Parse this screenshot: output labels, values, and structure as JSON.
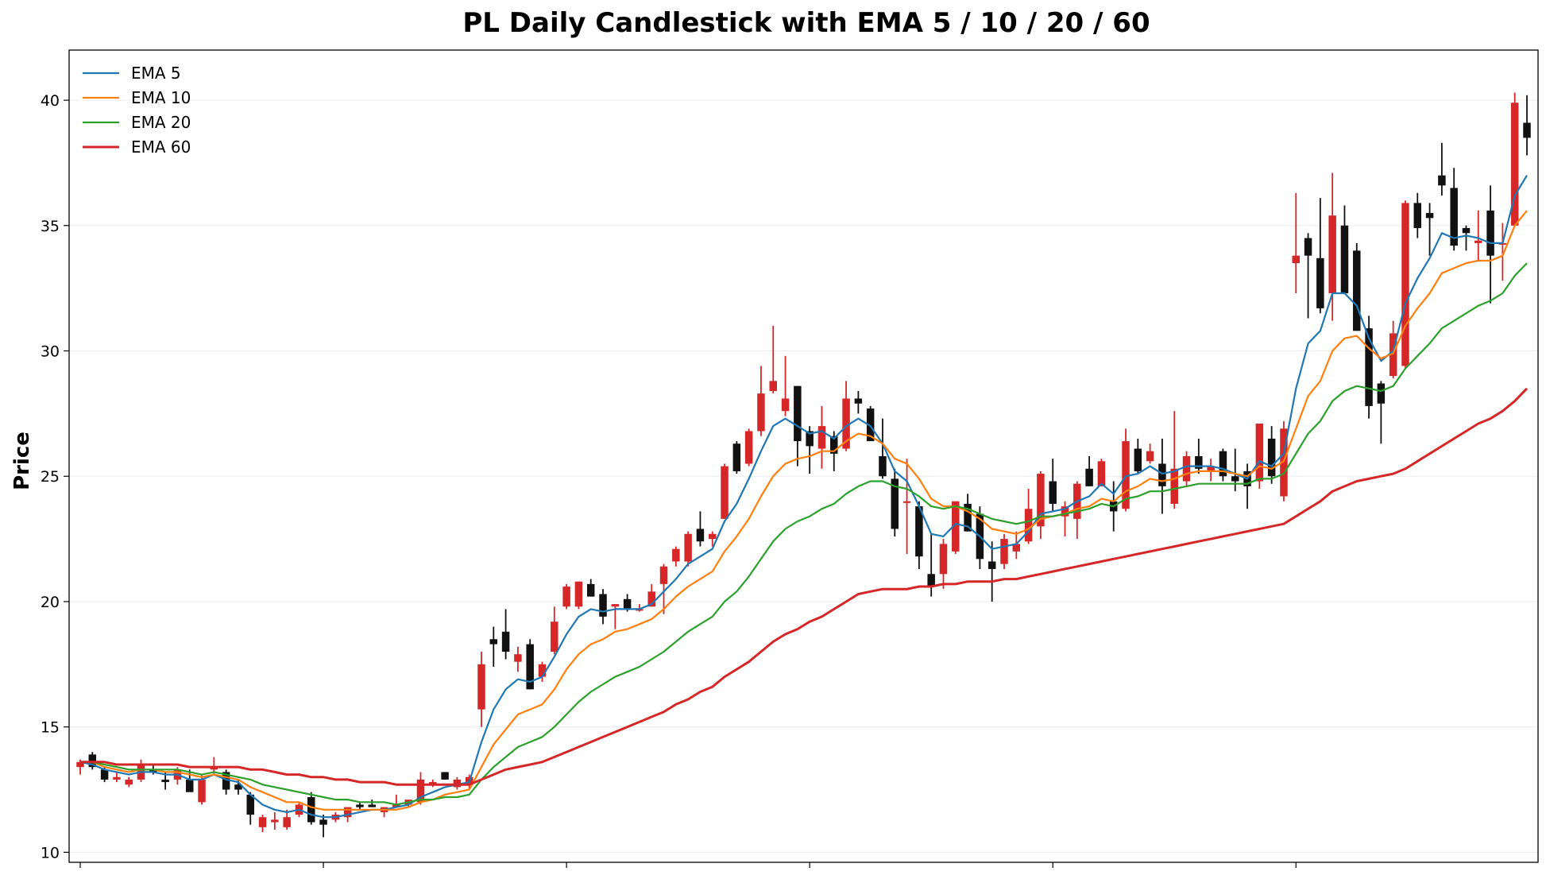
{
  "chart_data": {
    "type": "candlestick",
    "title": "PL Daily Candlestick with EMA 5 / 10 / 20 / 60",
    "ylabel": "Price",
    "ylim": [
      9.6,
      42.0
    ],
    "yticks": [
      10,
      15,
      20,
      25,
      30,
      35,
      40
    ],
    "grid": true,
    "legend_position": "top-left",
    "colors": {
      "up": "#d62728",
      "down": "#111111"
    },
    "candles": [
      [
        13.4,
        13.7,
        13.1,
        13.6
      ],
      [
        13.9,
        14.0,
        13.3,
        13.4
      ],
      [
        13.3,
        13.4,
        12.8,
        12.9
      ],
      [
        12.9,
        13.2,
        12.8,
        13.0
      ],
      [
        12.7,
        13.0,
        12.6,
        12.9
      ],
      [
        12.9,
        13.7,
        12.8,
        13.5
      ],
      [
        13.3,
        13.5,
        13.1,
        13.2
      ],
      [
        12.9,
        13.2,
        12.5,
        12.8
      ],
      [
        12.9,
        13.4,
        12.7,
        13.3
      ],
      [
        12.9,
        13.3,
        12.5,
        12.4
      ],
      [
        12.0,
        13.1,
        11.9,
        12.9
      ],
      [
        13.3,
        13.8,
        13.1,
        13.4
      ],
      [
        13.2,
        13.3,
        12.3,
        12.5
      ],
      [
        12.7,
        12.9,
        12.3,
        12.5
      ],
      [
        12.3,
        12.4,
        11.1,
        11.5
      ],
      [
        11.0,
        11.5,
        10.8,
        11.4
      ],
      [
        11.2,
        11.6,
        10.9,
        11.3
      ],
      [
        11.0,
        11.7,
        10.9,
        11.4
      ],
      [
        11.5,
        12.0,
        11.4,
        11.9
      ],
      [
        12.2,
        12.4,
        11.1,
        11.2
      ],
      [
        11.3,
        11.5,
        10.6,
        11.1
      ],
      [
        11.3,
        11.6,
        11.2,
        11.5
      ],
      [
        11.4,
        11.7,
        11.2,
        11.8
      ],
      [
        11.9,
        12.0,
        11.7,
        11.8
      ],
      [
        11.9,
        12.1,
        11.8,
        11.8
      ],
      [
        11.6,
        11.8,
        11.4,
        11.8
      ],
      [
        11.8,
        12.3,
        11.8,
        11.9
      ],
      [
        11.9,
        12.1,
        11.8,
        12.1
      ],
      [
        12.0,
        13.2,
        11.9,
        12.9
      ],
      [
        12.7,
        12.9,
        12.6,
        12.8
      ],
      [
        13.2,
        13.2,
        12.9,
        12.9
      ],
      [
        12.6,
        13.0,
        12.5,
        12.9
      ],
      [
        12.7,
        13.1,
        12.5,
        13.0
      ],
      [
        15.7,
        18.0,
        15.0,
        17.5
      ],
      [
        18.5,
        19.0,
        17.4,
        18.3
      ],
      [
        18.8,
        19.7,
        17.7,
        18.0
      ],
      [
        17.6,
        18.2,
        17.2,
        17.9
      ],
      [
        18.3,
        18.5,
        16.5,
        16.5
      ],
      [
        17.0,
        17.6,
        16.8,
        17.5
      ],
      [
        18.0,
        19.8,
        17.9,
        19.2
      ],
      [
        19.8,
        20.7,
        19.7,
        20.6
      ],
      [
        19.8,
        20.8,
        19.7,
        20.8
      ],
      [
        20.7,
        20.9,
        20.2,
        20.2
      ],
      [
        20.3,
        20.5,
        19.1,
        19.4
      ],
      [
        19.8,
        19.9,
        18.9,
        19.9
      ],
      [
        20.1,
        20.3,
        19.6,
        19.7
      ],
      [
        19.7,
        19.9,
        19.6,
        19.7
      ],
      [
        19.8,
        20.7,
        19.8,
        20.4
      ],
      [
        20.7,
        21.5,
        19.5,
        21.4
      ],
      [
        21.6,
        22.2,
        21.4,
        22.1
      ],
      [
        21.6,
        22.8,
        21.4,
        22.7
      ],
      [
        22.9,
        23.6,
        22.2,
        22.4
      ],
      [
        22.5,
        22.8,
        22.2,
        22.7
      ],
      [
        23.3,
        25.5,
        23.3,
        25.4
      ],
      [
        26.3,
        26.4,
        25.1,
        25.2
      ],
      [
        25.5,
        26.9,
        25.4,
        26.8
      ],
      [
        26.8,
        29.4,
        26.6,
        28.3
      ],
      [
        28.4,
        31.0,
        28.3,
        28.8
      ],
      [
        27.6,
        29.8,
        27.4,
        28.1
      ],
      [
        28.6,
        28.6,
        25.4,
        26.4
      ],
      [
        26.8,
        27.0,
        25.1,
        26.2
      ],
      [
        26.1,
        27.8,
        25.3,
        27.0
      ],
      [
        26.6,
        26.8,
        25.2,
        25.9
      ],
      [
        26.1,
        28.8,
        26.0,
        28.1
      ],
      [
        28.1,
        28.4,
        27.5,
        27.9
      ],
      [
        27.7,
        27.8,
        26.5,
        26.4
      ],
      [
        25.8,
        27.3,
        24.9,
        25.0
      ],
      [
        24.9,
        25.3,
        22.6,
        22.9
      ],
      [
        24.0,
        25.7,
        21.9,
        24.0
      ],
      [
        23.8,
        24.0,
        21.3,
        21.8
      ],
      [
        21.1,
        22.7,
        20.2,
        20.6
      ],
      [
        21.1,
        22.5,
        20.5,
        22.3
      ],
      [
        22.0,
        24.0,
        21.9,
        24.0
      ],
      [
        23.9,
        24.3,
        22.8,
        22.8
      ],
      [
        23.5,
        23.8,
        21.3,
        21.7
      ],
      [
        21.6,
        22.4,
        20.0,
        21.3
      ],
      [
        21.5,
        22.7,
        21.3,
        22.5
      ],
      [
        22.0,
        22.8,
        21.7,
        22.3
      ],
      [
        22.4,
        24.5,
        22.3,
        23.7
      ],
      [
        23.0,
        25.2,
        22.5,
        25.1
      ],
      [
        24.8,
        25.7,
        23.6,
        23.9
      ],
      [
        23.4,
        24.0,
        22.6,
        23.8
      ],
      [
        23.3,
        24.8,
        22.5,
        24.7
      ],
      [
        25.3,
        25.8,
        24.6,
        24.6
      ],
      [
        24.6,
        25.7,
        24.6,
        25.6
      ],
      [
        24.0,
        24.8,
        22.8,
        23.6
      ],
      [
        23.7,
        26.9,
        23.6,
        26.4
      ],
      [
        26.1,
        26.5,
        25.1,
        25.2
      ],
      [
        25.6,
        26.3,
        25.5,
        26.0
      ],
      [
        25.5,
        26.5,
        23.5,
        24.6
      ],
      [
        23.9,
        27.6,
        23.7,
        25.3
      ],
      [
        24.8,
        26.0,
        24.6,
        25.8
      ],
      [
        25.8,
        26.5,
        25.1,
        25.3
      ],
      [
        25.2,
        25.7,
        24.8,
        25.4
      ],
      [
        26.0,
        26.1,
        24.8,
        25.0
      ],
      [
        25.0,
        26.1,
        24.4,
        24.8
      ],
      [
        25.2,
        25.5,
        23.7,
        24.6
      ],
      [
        24.8,
        27.1,
        24.5,
        27.1
      ],
      [
        26.5,
        27.0,
        24.7,
        25.0
      ],
      [
        24.2,
        27.2,
        24.0,
        26.9
      ],
      [
        33.5,
        36.3,
        32.3,
        33.8
      ],
      [
        34.5,
        34.7,
        31.3,
        33.8
      ],
      [
        33.7,
        36.1,
        31.5,
        31.7
      ],
      [
        32.3,
        37.1,
        31.2,
        35.4
      ],
      [
        35.0,
        35.8,
        32.3,
        32.3
      ],
      [
        34.0,
        34.3,
        30.8,
        30.8
      ],
      [
        30.9,
        31.4,
        27.3,
        27.8
      ],
      [
        28.7,
        28.8,
        26.3,
        27.9
      ],
      [
        29.0,
        31.2,
        28.9,
        30.7
      ],
      [
        29.4,
        36.0,
        29.3,
        35.9
      ],
      [
        35.9,
        36.3,
        34.5,
        34.9
      ],
      [
        35.5,
        35.9,
        33.8,
        35.3
      ],
      [
        37.0,
        38.3,
        36.2,
        36.6
      ],
      [
        36.5,
        37.3,
        34.0,
        34.2
      ],
      [
        34.9,
        35.0,
        34.0,
        34.7
      ],
      [
        34.3,
        35.6,
        33.6,
        34.4
      ],
      [
        35.6,
        36.6,
        31.9,
        33.8
      ],
      [
        34.3,
        35.1,
        32.8,
        34.3
      ],
      [
        35.0,
        40.3,
        35.0,
        39.9
      ],
      [
        39.1,
        40.2,
        37.8,
        38.5
      ]
    ],
    "series": [
      {
        "name": "EMA 5",
        "color": "#1f77b4",
        "values": [
          13.6,
          13.5,
          13.3,
          13.2,
          13.1,
          13.2,
          13.2,
          13.1,
          13.1,
          12.9,
          12.9,
          13.1,
          12.9,
          12.8,
          12.3,
          11.9,
          11.7,
          11.6,
          11.7,
          11.5,
          11.4,
          11.4,
          11.5,
          11.6,
          11.7,
          11.7,
          11.8,
          11.9,
          12.2,
          12.4,
          12.6,
          12.7,
          12.8,
          14.4,
          15.7,
          16.5,
          16.9,
          16.8,
          17.0,
          17.8,
          18.7,
          19.4,
          19.7,
          19.6,
          19.7,
          19.7,
          19.7,
          19.9,
          20.4,
          20.9,
          21.5,
          21.8,
          22.1,
          23.2,
          23.9,
          24.9,
          26.0,
          27.0,
          27.3,
          27.0,
          26.7,
          26.8,
          26.5,
          27.0,
          27.3,
          27.0,
          26.3,
          25.2,
          24.8,
          23.8,
          22.7,
          22.6,
          23.1,
          23.0,
          22.6,
          22.1,
          22.2,
          22.3,
          22.8,
          23.5,
          23.6,
          23.7,
          24.0,
          24.2,
          24.7,
          24.3,
          25.0,
          25.1,
          25.4,
          25.1,
          25.2,
          25.4,
          25.4,
          25.4,
          25.3,
          25.1,
          24.9,
          25.6,
          25.4,
          25.9,
          28.5,
          30.3,
          30.8,
          32.3,
          32.3,
          31.8,
          30.5,
          29.6,
          30.0,
          31.9,
          32.9,
          33.7,
          34.7,
          34.5,
          34.6,
          34.5,
          34.3,
          34.3,
          36.2,
          37.0
        ]
      },
      {
        "name": "EMA 10",
        "color": "#ff7f0e",
        "values": [
          13.6,
          13.6,
          13.4,
          13.3,
          13.2,
          13.3,
          13.3,
          13.2,
          13.2,
          13.1,
          13.0,
          13.1,
          13.0,
          12.9,
          12.6,
          12.4,
          12.2,
          12.0,
          12.0,
          11.8,
          11.7,
          11.7,
          11.7,
          11.7,
          11.7,
          11.7,
          11.7,
          11.8,
          12.0,
          12.1,
          12.3,
          12.4,
          12.5,
          13.4,
          14.3,
          14.9,
          15.5,
          15.7,
          15.9,
          16.5,
          17.3,
          17.9,
          18.3,
          18.5,
          18.8,
          18.9,
          19.1,
          19.3,
          19.7,
          20.2,
          20.6,
          20.9,
          21.2,
          22.0,
          22.6,
          23.3,
          24.2,
          25.0,
          25.5,
          25.7,
          25.8,
          26.0,
          26.0,
          26.4,
          26.7,
          26.6,
          26.3,
          25.7,
          25.5,
          24.9,
          24.1,
          23.8,
          23.8,
          23.6,
          23.3,
          22.9,
          22.8,
          22.7,
          22.9,
          23.3,
          23.4,
          23.5,
          23.7,
          23.8,
          24.1,
          24.0,
          24.4,
          24.6,
          24.9,
          24.8,
          24.9,
          25.1,
          25.2,
          25.2,
          25.2,
          25.1,
          25.0,
          25.4,
          25.3,
          25.6,
          26.9,
          28.2,
          28.8,
          30.0,
          30.5,
          30.6,
          30.1,
          29.7,
          29.9,
          31.0,
          31.7,
          32.3,
          33.1,
          33.3,
          33.5,
          33.6,
          33.6,
          33.8,
          35.0,
          35.6
        ]
      },
      {
        "name": "EMA 20",
        "color": "#2ca02c",
        "values": [
          13.6,
          13.6,
          13.5,
          13.4,
          13.3,
          13.3,
          13.3,
          13.3,
          13.3,
          13.2,
          13.1,
          13.2,
          13.1,
          13.0,
          12.9,
          12.7,
          12.6,
          12.5,
          12.4,
          12.3,
          12.2,
          12.1,
          12.1,
          12.0,
          12.0,
          12.0,
          11.9,
          12.0,
          12.1,
          12.1,
          12.2,
          12.2,
          12.3,
          12.9,
          13.4,
          13.8,
          14.2,
          14.4,
          14.6,
          15.0,
          15.5,
          16.0,
          16.4,
          16.7,
          17.0,
          17.2,
          17.4,
          17.7,
          18.0,
          18.4,
          18.8,
          19.1,
          19.4,
          20.0,
          20.4,
          21.0,
          21.7,
          22.4,
          22.9,
          23.2,
          23.4,
          23.7,
          23.9,
          24.3,
          24.6,
          24.8,
          24.8,
          24.6,
          24.5,
          24.2,
          23.8,
          23.7,
          23.8,
          23.7,
          23.5,
          23.3,
          23.2,
          23.1,
          23.2,
          23.4,
          23.4,
          23.5,
          23.6,
          23.7,
          23.9,
          23.8,
          24.1,
          24.2,
          24.4,
          24.4,
          24.5,
          24.6,
          24.7,
          24.7,
          24.7,
          24.7,
          24.7,
          24.9,
          24.9,
          25.1,
          25.9,
          26.7,
          27.2,
          28.0,
          28.4,
          28.6,
          28.5,
          28.4,
          28.6,
          29.3,
          29.8,
          30.3,
          30.9,
          31.2,
          31.5,
          31.8,
          32.0,
          32.3,
          33.0,
          33.5
        ]
      },
      {
        "name": "EMA 60",
        "color": "#d62728",
        "values": [
          13.6,
          13.6,
          13.6,
          13.5,
          13.5,
          13.5,
          13.5,
          13.5,
          13.5,
          13.4,
          13.4,
          13.4,
          13.4,
          13.4,
          13.3,
          13.3,
          13.2,
          13.1,
          13.1,
          13.0,
          13.0,
          12.9,
          12.9,
          12.8,
          12.8,
          12.8,
          12.7,
          12.7,
          12.7,
          12.7,
          12.7,
          12.7,
          12.7,
          12.9,
          13.1,
          13.3,
          13.4,
          13.5,
          13.6,
          13.8,
          14.0,
          14.2,
          14.4,
          14.6,
          14.8,
          15.0,
          15.2,
          15.4,
          15.6,
          15.9,
          16.1,
          16.4,
          16.6,
          17.0,
          17.3,
          17.6,
          18.0,
          18.4,
          18.7,
          18.9,
          19.2,
          19.4,
          19.7,
          20.0,
          20.3,
          20.4,
          20.5,
          20.5,
          20.5,
          20.6,
          20.6,
          20.7,
          20.7,
          20.8,
          20.8,
          20.8,
          20.9,
          20.9,
          21.0,
          21.1,
          21.2,
          21.3,
          21.4,
          21.5,
          21.6,
          21.7,
          21.8,
          21.9,
          22.0,
          22.1,
          22.2,
          22.3,
          22.4,
          22.5,
          22.6,
          22.7,
          22.8,
          22.9,
          23.0,
          23.1,
          23.4,
          23.7,
          24.0,
          24.4,
          24.6,
          24.8,
          24.9,
          25.0,
          25.1,
          25.3,
          25.6,
          25.9,
          26.2,
          26.5,
          26.8,
          27.1,
          27.3,
          27.6,
          28.0,
          28.5
        ]
      }
    ]
  }
}
